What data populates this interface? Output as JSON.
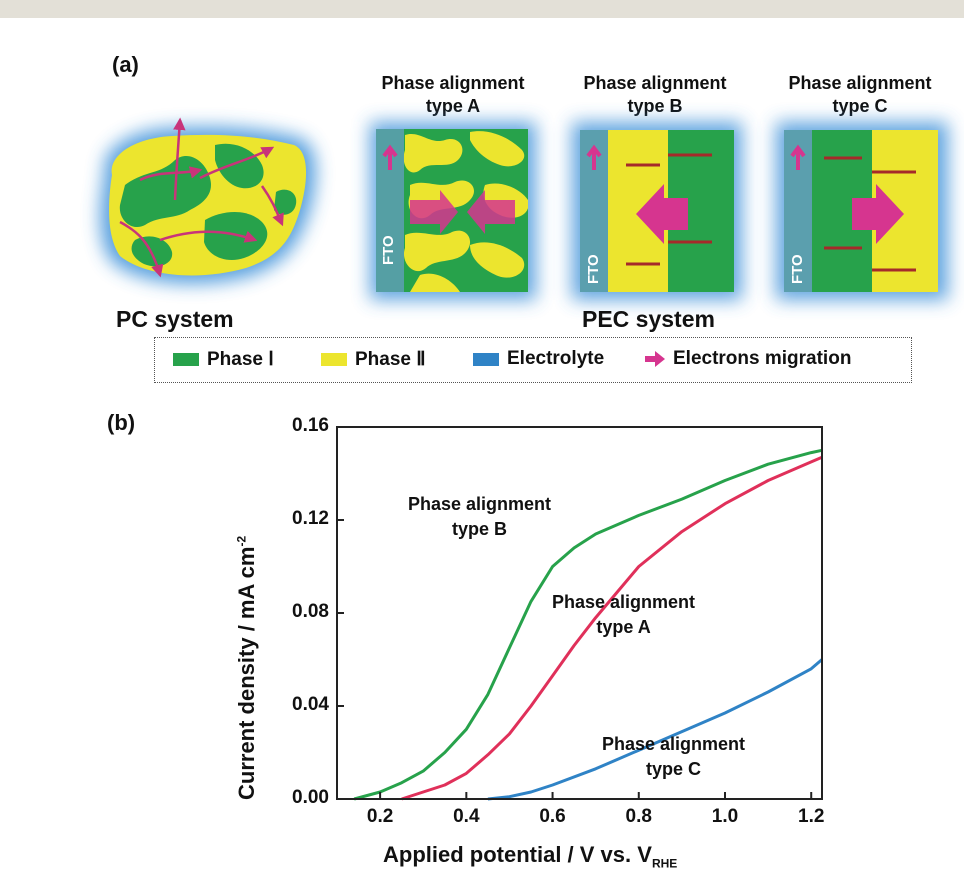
{
  "figure": {
    "panel_a_label": "(a)",
    "panel_b_label": "(b)",
    "pc_system_label": "PC system",
    "pec_system_label": "PEC system",
    "fto_label": "FTO",
    "diagram_titles": [
      {
        "line1": "Phase alignment",
        "line2": "type A"
      },
      {
        "line1": "Phase alignment",
        "line2": "type B"
      },
      {
        "line1": "Phase alignment",
        "line2": "type C"
      }
    ],
    "legend": [
      {
        "label": "Phase Ⅰ",
        "color": "#27a24b"
      },
      {
        "label": "Phase Ⅱ",
        "color": "#ece52e"
      },
      {
        "label": "Electrolyte",
        "color": "#2f83c6"
      },
      {
        "label": "Electrons migration",
        "color": "#d6358f"
      }
    ],
    "colors": {
      "phase_I": "#27a24b",
      "phase_II": "#ece52e",
      "fto": "#5b9fae",
      "electrons": "#d6358f",
      "level_line": "#a52a2a",
      "glow": "#3b8fd8"
    }
  },
  "chart_data": {
    "type": "line",
    "xlabel_main": "Applied potential / V vs. V",
    "xlabel_sub": "RHE",
    "ylabel_main": "Current density / mA cm",
    "ylabel_sup": "-2",
    "xlim": [
      0.1,
      1.225
    ],
    "ylim": [
      0.0,
      0.16
    ],
    "xticks": [
      0.2,
      0.4,
      0.6,
      0.8,
      1.0,
      1.2
    ],
    "xtick_labels": [
      "0.2",
      "0.4",
      "0.6",
      "0.8",
      "1.0",
      "1.2"
    ],
    "yticks": [
      0.0,
      0.04,
      0.08,
      0.12,
      0.16
    ],
    "ytick_labels": [
      "0.00",
      "0.04",
      "0.08",
      "0.12",
      "0.16"
    ],
    "series": [
      {
        "name": "Phase alignment type B",
        "color": "#27a24b",
        "label_lines": [
          "Phase alignment",
          "type B"
        ],
        "x": [
          0.14,
          0.2,
          0.25,
          0.3,
          0.35,
          0.4,
          0.45,
          0.5,
          0.55,
          0.6,
          0.65,
          0.7,
          0.8,
          0.9,
          1.0,
          1.1,
          1.2,
          1.225
        ],
        "y": [
          0.0,
          0.003,
          0.007,
          0.012,
          0.02,
          0.03,
          0.045,
          0.065,
          0.085,
          0.1,
          0.108,
          0.114,
          0.122,
          0.129,
          0.137,
          0.144,
          0.149,
          0.15
        ]
      },
      {
        "name": "Phase alignment type A",
        "color": "#e0305a",
        "label_lines": [
          "Phase alignment",
          "type A"
        ],
        "x": [
          0.25,
          0.3,
          0.35,
          0.4,
          0.45,
          0.5,
          0.55,
          0.6,
          0.65,
          0.7,
          0.75,
          0.8,
          0.9,
          1.0,
          1.1,
          1.2,
          1.225
        ],
        "y": [
          0.0,
          0.003,
          0.006,
          0.011,
          0.019,
          0.028,
          0.04,
          0.053,
          0.066,
          0.078,
          0.089,
          0.1,
          0.115,
          0.127,
          0.137,
          0.145,
          0.147
        ]
      },
      {
        "name": "Phase alignment type C",
        "color": "#2f83c6",
        "label_lines": [
          "Phase alignment",
          "type C"
        ],
        "x": [
          0.45,
          0.5,
          0.55,
          0.6,
          0.7,
          0.8,
          0.9,
          1.0,
          1.1,
          1.2,
          1.225
        ],
        "y": [
          0.0,
          0.001,
          0.003,
          0.006,
          0.013,
          0.021,
          0.029,
          0.037,
          0.046,
          0.056,
          0.06
        ]
      }
    ]
  }
}
